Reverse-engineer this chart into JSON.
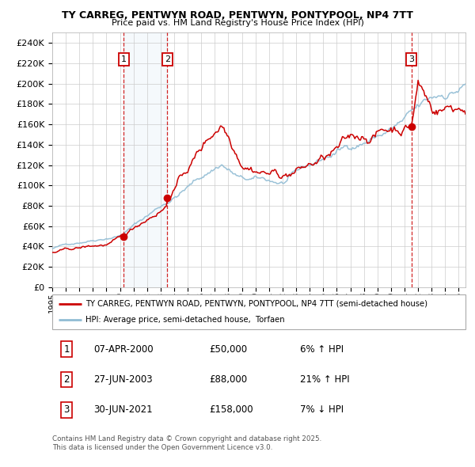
{
  "title_line1": "TY CARREG, PENTWYN ROAD, PENTWYN, PONTYPOOL, NP4 7TT",
  "title_line2": "Price paid vs. HM Land Registry's House Price Index (HPI)",
  "legend_line1": "TY CARREG, PENTWYN ROAD, PENTWYN, PONTYPOOL, NP4 7TT (semi-detached house)",
  "legend_line2": "HPI: Average price, semi-detached house,  Torfaen",
  "footnote_line1": "Contains HM Land Registry data © Crown copyright and database right 2025.",
  "footnote_line2": "This data is licensed under the Open Government Licence v3.0.",
  "sale_dates_decimal": [
    2000.27,
    2003.49,
    2021.5
  ],
  "sale_prices": [
    50000,
    88000,
    158000
  ],
  "ylim": [
    0,
    250000
  ],
  "yticks": [
    0,
    20000,
    40000,
    60000,
    80000,
    100000,
    120000,
    140000,
    160000,
    180000,
    200000,
    220000,
    240000
  ],
  "xmin_year": 1995,
  "xmax_year": 2025.5,
  "xtick_years": [
    1995,
    1996,
    1997,
    1998,
    1999,
    2000,
    2001,
    2002,
    2003,
    2004,
    2005,
    2006,
    2007,
    2008,
    2009,
    2010,
    2011,
    2012,
    2013,
    2014,
    2015,
    2016,
    2017,
    2018,
    2019,
    2020,
    2021,
    2022,
    2023,
    2024,
    2025
  ],
  "red_line_color": "#cc0000",
  "blue_line_color": "#90bcd4",
  "marker_color": "#cc0000",
  "shade_xmin": 2000.27,
  "shade_xmax": 2003.49,
  "background_color": "#ffffff",
  "grid_color": "#cccccc",
  "box_color": "#cc0000",
  "table_entries": [
    {
      "num": "1",
      "date": "07-APR-2000",
      "price": "£50,000",
      "pct": "6% ↑ HPI"
    },
    {
      "num": "2",
      "date": "27-JUN-2003",
      "price": "£88,000",
      "pct": "21% ↑ HPI"
    },
    {
      "num": "3",
      "date": "30-JUN-2021",
      "price": "£158,000",
      "pct": "7% ↓ HPI"
    }
  ]
}
